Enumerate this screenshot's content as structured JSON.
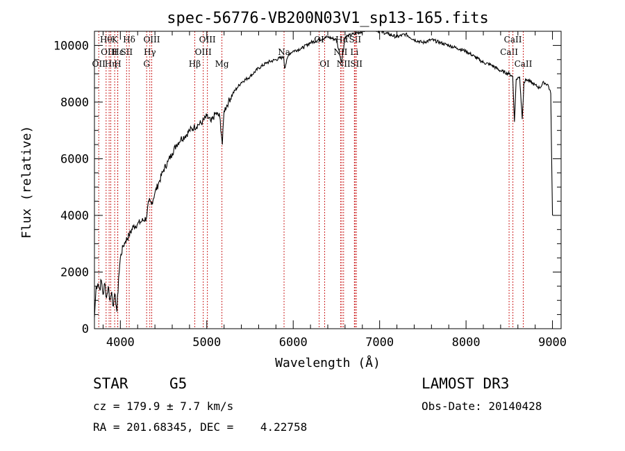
{
  "chart_data": {
    "type": "line",
    "title": "spec-56776-VB200N03V1_sp13-165.fits",
    "xlabel": "Wavelength (Å)",
    "ylabel": "Flux (relative)",
    "xlim": [
      3700,
      9100
    ],
    "ylim": [
      0,
      10500
    ],
    "x_ticks": [
      4000,
      5000,
      6000,
      7000,
      8000,
      9000
    ],
    "x_tick_labels": [
      "4000",
      "5000",
      "6000",
      "7000",
      "8000",
      "9000"
    ],
    "y_ticks": [
      0,
      2000,
      4000,
      6000,
      8000,
      10000
    ],
    "y_tick_labels": [
      "0",
      "2000",
      "4000",
      "6000",
      "8000",
      "10000"
    ],
    "grid": false,
    "series": [
      {
        "name": "flux",
        "x": [
          3700,
          3720,
          3740,
          3760,
          3780,
          3800,
          3820,
          3840,
          3860,
          3880,
          3900,
          3920,
          3940,
          3960,
          3980,
          4000,
          4030,
          4060,
          4100,
          4150,
          4200,
          4250,
          4300,
          4330,
          4360,
          4400,
          4450,
          4500,
          4550,
          4600,
          4650,
          4700,
          4750,
          4800,
          4850,
          4900,
          4950,
          5000,
          5050,
          5100,
          5150,
          5180,
          5200,
          5250,
          5300,
          5350,
          5400,
          5500,
          5600,
          5700,
          5800,
          5890,
          5900,
          5950,
          6000,
          6100,
          6200,
          6300,
          6400,
          6500,
          6560,
          6600,
          6700,
          6800,
          6900,
          7000,
          7100,
          7200,
          7300,
          7400,
          7500,
          7600,
          7700,
          7800,
          7900,
          8000,
          8100,
          8200,
          8300,
          8400,
          8500,
          8540,
          8560,
          8580,
          8620,
          8650,
          8670,
          8700,
          8750,
          8800,
          8850,
          8900,
          8950,
          8980,
          9000
        ],
        "values": [
          400,
          1500,
          1600,
          1400,
          1700,
          1200,
          1600,
          1100,
          1500,
          1000,
          1300,
          800,
          1200,
          600,
          1800,
          2500,
          2900,
          3100,
          3300,
          3600,
          3700,
          3800,
          3900,
          4500,
          4400,
          4800,
          5200,
          5600,
          5900,
          6200,
          6500,
          6700,
          6800,
          7000,
          7100,
          7200,
          7300,
          7500,
          7300,
          7600,
          7500,
          6500,
          7700,
          8000,
          8300,
          8500,
          8700,
          8900,
          9200,
          9400,
          9500,
          9600,
          9200,
          9700,
          9800,
          9900,
          10100,
          10200,
          10300,
          10200,
          9400,
          10300,
          10400,
          10500,
          10600,
          10500,
          10400,
          10300,
          10400,
          10200,
          10100,
          10200,
          10100,
          10000,
          9900,
          9800,
          9600,
          9400,
          9300,
          9100,
          9000,
          8900,
          7300,
          8800,
          8900,
          7400,
          8700,
          8800,
          8700,
          8600,
          8500,
          8700,
          8600,
          8300,
          4000
        ]
      }
    ],
    "line_markers": [
      {
        "wl": 3750,
        "label": "OII",
        "row": 3
      },
      {
        "wl": 3835,
        "label": "Hθ",
        "row": 1
      },
      {
        "wl": 3870,
        "label": "OIII",
        "row": 2
      },
      {
        "wl": 3889,
        "label": "Hη",
        "row": 3
      },
      {
        "wl": 3934,
        "label": "K",
        "row": 1
      },
      {
        "wl": 3969,
        "label": "H",
        "row": 3
      },
      {
        "wl": 3970,
        "label": "Hε",
        "row": 2
      },
      {
        "wl": 4072,
        "label": "SII",
        "row": 2
      },
      {
        "wl": 4102,
        "label": "Hδ",
        "row": 1
      },
      {
        "wl": 4304,
        "label": "G",
        "row": 3
      },
      {
        "wl": 4341,
        "label": "Hγ",
        "row": 2
      },
      {
        "wl": 4363,
        "label": "OIII",
        "row": 1
      },
      {
        "wl": 4861,
        "label": "Hβ",
        "row": 3
      },
      {
        "wl": 4959,
        "label": "OIII",
        "row": 2
      },
      {
        "wl": 5007,
        "label": "OIII",
        "row": 1
      },
      {
        "wl": 5175,
        "label": "Mg",
        "row": 3
      },
      {
        "wl": 5894,
        "label": "Na",
        "row": 2
      },
      {
        "wl": 6300,
        "label": "OI",
        "row": 1
      },
      {
        "wl": 6364,
        "label": "OI",
        "row": 3
      },
      {
        "wl": 6548,
        "label": "NII",
        "row": 2
      },
      {
        "wl": 6563,
        "label": "Hα",
        "row": 1
      },
      {
        "wl": 6583,
        "label": "NII",
        "row": 3
      },
      {
        "wl": 6708,
        "label": "Li",
        "row": 2
      },
      {
        "wl": 6716,
        "label": "SII",
        "row": 1
      },
      {
        "wl": 6731,
        "label": "SII",
        "row": 3
      },
      {
        "wl": 8498,
        "label": "CaII",
        "row": 2
      },
      {
        "wl": 8542,
        "label": "CaII",
        "row": 1
      },
      {
        "wl": 8662,
        "label": "CaII",
        "row": 3
      }
    ]
  },
  "info": {
    "object_class": "STAR",
    "subclass": "G5",
    "survey": "LAMOST DR3",
    "cz": "cz = 179.9 ± 7.7 km/s",
    "obs_date": "Obs-Date: 20140428",
    "coords": "RA = 201.68345, DEC =    4.22758"
  }
}
